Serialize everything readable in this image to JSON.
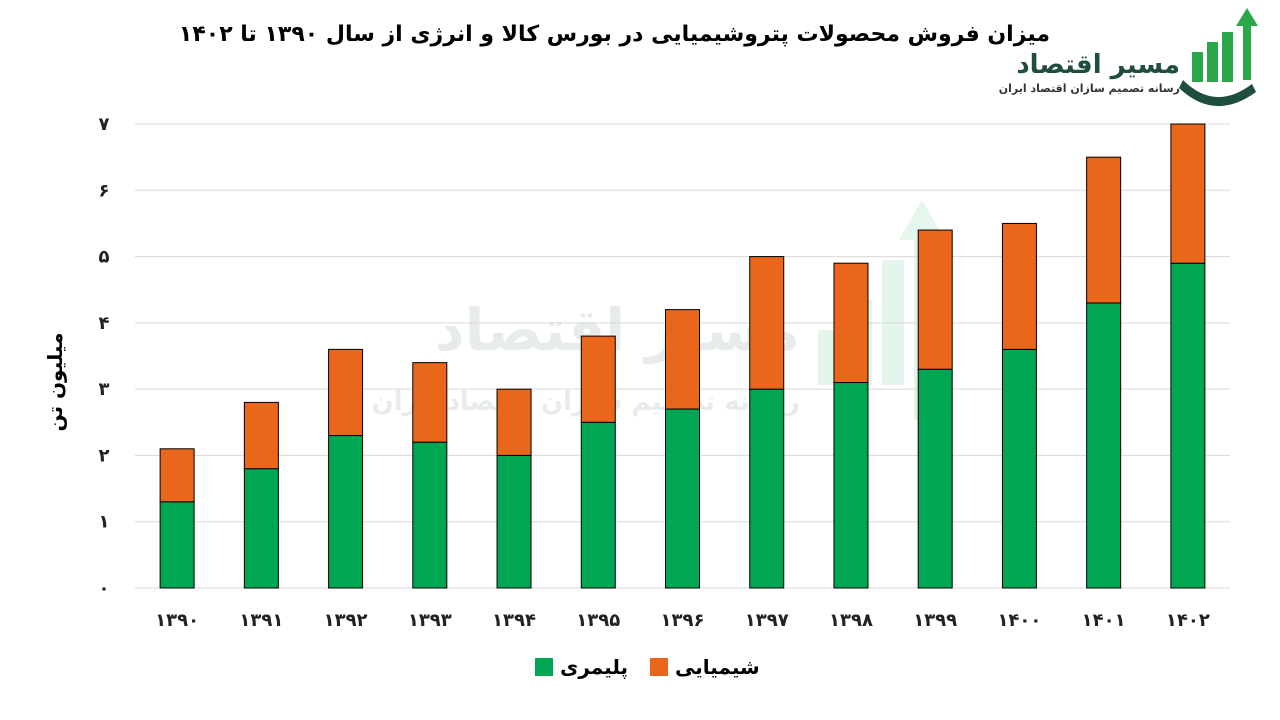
{
  "logo": {
    "name": "مسیر اقتصاد",
    "tagline": "رسانه تصمیم سازان اقتصاد ایران"
  },
  "chart_data": {
    "type": "bar",
    "stacked": true,
    "title": "میزان فروش محصولات پتروشیمیایی در بورس کالا و انرژی از سال ۱۳۹۰ تا ۱۴۰۲",
    "xlabel": "",
    "ylabel": "میلیون تن",
    "ylim": [
      0,
      7
    ],
    "yticks": [
      0,
      1,
      2,
      3,
      4,
      5,
      6,
      7
    ],
    "ytick_labels": [
      "۰",
      "۱",
      "۲",
      "۳",
      "۴",
      "۵",
      "۶",
      "۷"
    ],
    "grid": true,
    "legend_position": "bottom",
    "categories": [
      "۱۳۹۰",
      "۱۳۹۱",
      "۱۳۹۲",
      "۱۳۹۳",
      "۱۳۹۴",
      "۱۳۹۵",
      "۱۳۹۶",
      "۱۳۹۷",
      "۱۳۹۸",
      "۱۳۹۹",
      "۱۴۰۰",
      "۱۴۰۱",
      "۱۴۰۲"
    ],
    "series": [
      {
        "name": "پلیمری",
        "color": "#00a651",
        "values": [
          1.3,
          1.8,
          2.3,
          2.2,
          2.0,
          2.5,
          2.7,
          3.0,
          3.1,
          3.3,
          3.6,
          4.3,
          4.9
        ]
      },
      {
        "name": "شیمیایی",
        "color": "#e9661a",
        "values": [
          0.8,
          1.0,
          1.3,
          1.2,
          1.0,
          1.3,
          1.5,
          2.0,
          1.8,
          2.1,
          1.9,
          2.2,
          2.1
        ]
      }
    ]
  }
}
